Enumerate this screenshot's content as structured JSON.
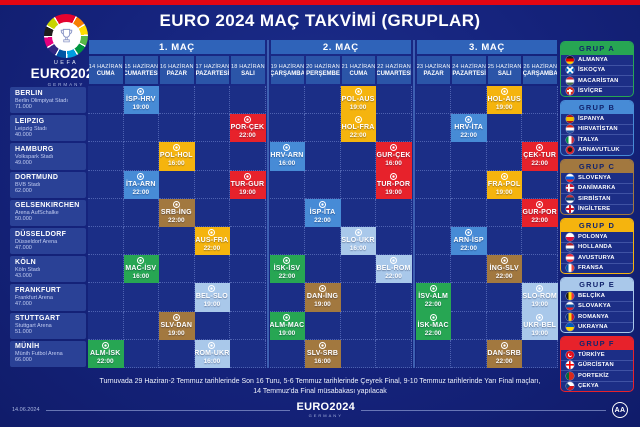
{
  "title": "EURO 2024 MAÇ TAKVİMİ (GRUPLAR)",
  "logo": {
    "uefa": "UEFA",
    "euro": "EURO2024",
    "country": "GERMANY"
  },
  "group_colors": {
    "A": "#27a653",
    "B": "#478bd6",
    "C": "#a2783f",
    "D": "#f5b40e",
    "E": "#a9c8ea",
    "F": "#e7222b"
  },
  "accent": {
    "top_bar": "#e30613"
  },
  "chart_data": {
    "type": "table",
    "title": "EURO 2024 MAÇ TAKVİMİ (GRUPLAR)",
    "match_bands": [
      {
        "label": "1. MAÇ",
        "cols": 5
      },
      {
        "label": "2. MAÇ",
        "cols": 4
      },
      {
        "label": "3. MAÇ",
        "cols": 4
      }
    ],
    "columns": [
      {
        "date": "14 HAZİRAN",
        "day": "CUMA"
      },
      {
        "date": "15 HAZİRAN",
        "day": "CUMARTESİ"
      },
      {
        "date": "16 HAZİRAN",
        "day": "PAZAR"
      },
      {
        "date": "17 HAZİRAN",
        "day": "PAZARTESİ"
      },
      {
        "date": "18 HAZİRAN",
        "day": "SALI"
      },
      {
        "date": "19 HAZİRAN",
        "day": "ÇARŞAMBA"
      },
      {
        "date": "20 HAZİRAN",
        "day": "PERŞEMBE"
      },
      {
        "date": "21 HAZİRAN",
        "day": "CUMA"
      },
      {
        "date": "22 HAZİRAN",
        "day": "CUMARTESİ"
      },
      {
        "date": "23 HAZİRAN",
        "day": "PAZAR"
      },
      {
        "date": "24 HAZİRAN",
        "day": "PAZARTESİ"
      },
      {
        "date": "25 HAZİRAN",
        "day": "SALI"
      },
      {
        "date": "26 HAZİRAN",
        "day": "ÇARŞAMBA"
      }
    ],
    "rows": [
      {
        "city": "BERLIN",
        "stadium": "Berlin Olimpiyat Stadı",
        "capacity": "71.000"
      },
      {
        "city": "LEIPZIG",
        "stadium": "Leipzig Stadı",
        "capacity": "40.000"
      },
      {
        "city": "HAMBURG",
        "stadium": "Volkspark Stadı",
        "capacity": "49.000"
      },
      {
        "city": "DORTMUND",
        "stadium": "BVB Stadı",
        "capacity": "62.000"
      },
      {
        "city": "GELSENKIRCHEN",
        "stadium": "Arena AufSchalke",
        "capacity": "50.000"
      },
      {
        "city": "DÜSSELDORF",
        "stadium": "Düsseldorf Arena",
        "capacity": "47.000"
      },
      {
        "city": "KÖLN",
        "stadium": "Köln Stadı",
        "capacity": "43.000"
      },
      {
        "city": "FRANKFURT",
        "stadium": "Frankfurt Arena",
        "capacity": "47.000"
      },
      {
        "city": "STUTTGART",
        "stadium": "Stuttgart Arena",
        "capacity": "51.000"
      },
      {
        "city": "MÜNİH",
        "stadium": "Münih Futbol Arena",
        "capacity": "66.000"
      }
    ],
    "cells": [
      {
        "v": 0,
        "d": 1,
        "match": "İSP-HRV",
        "time": "19:00",
        "group": "B"
      },
      {
        "v": 0,
        "d": 7,
        "match": "POL-AUS",
        "time": "19:00",
        "group": "D"
      },
      {
        "v": 0,
        "d": 11,
        "match": "HOL-AUS",
        "time": "19:00",
        "group": "D"
      },
      {
        "v": 1,
        "d": 4,
        "match": "POR-ÇEK",
        "time": "22:00",
        "group": "F"
      },
      {
        "v": 1,
        "d": 7,
        "match": "HOL-FRA",
        "time": "22:00",
        "group": "D"
      },
      {
        "v": 1,
        "d": 10,
        "match": "HRV-İTA",
        "time": "22:00",
        "group": "B"
      },
      {
        "v": 2,
        "d": 2,
        "match": "POL-HOL",
        "time": "16:00",
        "group": "D"
      },
      {
        "v": 2,
        "d": 5,
        "match": "HRV-ARN",
        "time": "16:00",
        "group": "B"
      },
      {
        "v": 2,
        "d": 8,
        "match": "GUR-ÇEK",
        "time": "16:00",
        "group": "F"
      },
      {
        "v": 2,
        "d": 12,
        "match": "ÇEK-TUR",
        "time": "22:00",
        "group": "F"
      },
      {
        "v": 3,
        "d": 1,
        "match": "İTA-ARN",
        "time": "22:00",
        "group": "B"
      },
      {
        "v": 3,
        "d": 4,
        "match": "TUR-GUR",
        "time": "19:00",
        "group": "F"
      },
      {
        "v": 3,
        "d": 8,
        "match": "TUR-POR",
        "time": "19:00",
        "group": "F"
      },
      {
        "v": 3,
        "d": 11,
        "match": "FRA-POL",
        "time": "19:00",
        "group": "D"
      },
      {
        "v": 4,
        "d": 2,
        "match": "SRB-İNG",
        "time": "22:00",
        "group": "C"
      },
      {
        "v": 4,
        "d": 6,
        "match": "İSP-İTA",
        "time": "22:00",
        "group": "B"
      },
      {
        "v": 4,
        "d": 12,
        "match": "GUR-POR",
        "time": "22:00",
        "group": "F"
      },
      {
        "v": 5,
        "d": 3,
        "match": "AUS-FRA",
        "time": "22:00",
        "group": "D"
      },
      {
        "v": 5,
        "d": 7,
        "match": "SLO-UKR",
        "time": "16:00",
        "group": "E"
      },
      {
        "v": 5,
        "d": 10,
        "match": "ARN-İSP",
        "time": "22:00",
        "group": "B"
      },
      {
        "v": 6,
        "d": 1,
        "match": "MAC-İSV",
        "time": "16:00",
        "group": "A"
      },
      {
        "v": 6,
        "d": 5,
        "match": "İSK-İSV",
        "time": "22:00",
        "group": "A"
      },
      {
        "v": 6,
        "d": 8,
        "match": "BEL-ROM",
        "time": "22:00",
        "group": "E"
      },
      {
        "v": 6,
        "d": 11,
        "match": "İNG-SLV",
        "time": "22:00",
        "group": "C"
      },
      {
        "v": 7,
        "d": 3,
        "match": "BEL-SLO",
        "time": "19:00",
        "group": "E"
      },
      {
        "v": 7,
        "d": 6,
        "match": "DAN-İNG",
        "time": "19:00",
        "group": "C"
      },
      {
        "v": 7,
        "d": 9,
        "match": "İSV-ALM",
        "time": "22:00",
        "group": "A"
      },
      {
        "v": 7,
        "d": 12,
        "match": "SLO-ROM",
        "time": "19:00",
        "group": "E"
      },
      {
        "v": 8,
        "d": 2,
        "match": "SLV-DAN",
        "time": "19:00",
        "group": "C"
      },
      {
        "v": 8,
        "d": 5,
        "match": "ALM-MAC",
        "time": "19:00",
        "group": "A"
      },
      {
        "v": 8,
        "d": 9,
        "match": "İSK-MAC",
        "time": "22:00",
        "group": "A"
      },
      {
        "v": 8,
        "d": 12,
        "match": "UKR-BEL",
        "time": "19:00",
        "group": "E"
      },
      {
        "v": 9,
        "d": 0,
        "match": "ALM-İSK",
        "time": "22:00",
        "group": "A"
      },
      {
        "v": 9,
        "d": 3,
        "match": "ROM-UKR",
        "time": "16:00",
        "group": "E"
      },
      {
        "v": 9,
        "d": 6,
        "match": "SLV-SRB",
        "time": "16:00",
        "group": "C"
      },
      {
        "v": 9,
        "d": 11,
        "match": "DAN-SRB",
        "time": "22:00",
        "group": "C"
      }
    ],
    "groups": [
      {
        "id": "A",
        "label": "GRUP A",
        "teams": [
          {
            "name": "ALMANYA",
            "flag": "almanya"
          },
          {
            "name": "İSKOÇYA",
            "flag": "iskocya"
          },
          {
            "name": "MACARİSTAN",
            "flag": "macaristan"
          },
          {
            "name": "İSVİÇRE",
            "flag": "isvicre"
          }
        ]
      },
      {
        "id": "B",
        "label": "GRUP B",
        "teams": [
          {
            "name": "İSPANYA",
            "flag": "ispanya"
          },
          {
            "name": "HIRVATİSTAN",
            "flag": "hirvatistan"
          },
          {
            "name": "İTALYA",
            "flag": "italya"
          },
          {
            "name": "ARNAVUTLUK",
            "flag": "arnavutluk"
          }
        ]
      },
      {
        "id": "C",
        "label": "GRUP C",
        "teams": [
          {
            "name": "SLOVENYA",
            "flag": "slovenya"
          },
          {
            "name": "DANİMARKA",
            "flag": "danimarka"
          },
          {
            "name": "SIRBİSTAN",
            "flag": "sirbistan"
          },
          {
            "name": "İNGİLTERE",
            "flag": "ingiltere"
          }
        ]
      },
      {
        "id": "D",
        "label": "GRUP D",
        "teams": [
          {
            "name": "POLONYA",
            "flag": "polonya"
          },
          {
            "name": "HOLLANDA",
            "flag": "hollanda"
          },
          {
            "name": "AVUSTURYA",
            "flag": "avusturya"
          },
          {
            "name": "FRANSA",
            "flag": "fransa"
          }
        ]
      },
      {
        "id": "E",
        "label": "GRUP E",
        "teams": [
          {
            "name": "BELÇİKA",
            "flag": "belcika"
          },
          {
            "name": "SLOVAKYA",
            "flag": "slovakya"
          },
          {
            "name": "ROMANYA",
            "flag": "romanya"
          },
          {
            "name": "UKRAYNA",
            "flag": "ukrayna"
          }
        ]
      },
      {
        "id": "F",
        "label": "GRUP F",
        "teams": [
          {
            "name": "TÜRKİYE",
            "flag": "turkiye"
          },
          {
            "name": "GÜRCİSTAN",
            "flag": "gurcistan"
          },
          {
            "name": "PORTEKİZ",
            "flag": "portekiz"
          },
          {
            "name": "ÇEKYA",
            "flag": "cekya"
          }
        ]
      }
    ]
  },
  "footnote": {
    "line1": "Turnuvada 29 Haziran-2 Temmuz tarihlerinde Son 16 Turu, 5-6 Temmuz tarihlerinde Çeyrek Final, 9-10 Temmuz tarihlerinde Yarı Final maçları,",
    "line2": "14 Temmuz'da Final müsabakası yapılacak"
  },
  "footer": {
    "date": "14.06.2024",
    "brand": "EURO2024",
    "brand_sub": "GERMANY",
    "agency": "AA"
  }
}
